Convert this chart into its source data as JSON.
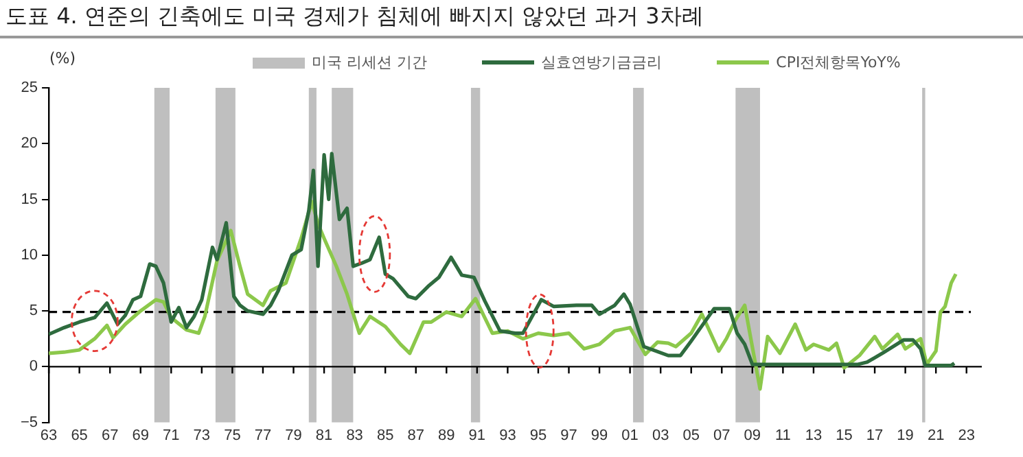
{
  "chart_data": {
    "type": "line",
    "title": "도표 4. 연준의 긴축에도 미국 경제가 침체에 빠지지 않았던 과거 3차례",
    "ylabel": "(%)",
    "xlim": [
      1963,
      2024
    ],
    "xticks": [
      {
        "value": 1963,
        "label": "63"
      },
      {
        "value": 1965,
        "label": "65"
      },
      {
        "value": 1967,
        "label": "67"
      },
      {
        "value": 1969,
        "label": "69"
      },
      {
        "value": 1971,
        "label": "71"
      },
      {
        "value": 1973,
        "label": "73"
      },
      {
        "value": 1975,
        "label": "75"
      },
      {
        "value": 1977,
        "label": "77"
      },
      {
        "value": 1979,
        "label": "79"
      },
      {
        "value": 1981,
        "label": "81"
      },
      {
        "value": 1983,
        "label": "83"
      },
      {
        "value": 1985,
        "label": "85"
      },
      {
        "value": 1987,
        "label": "87"
      },
      {
        "value": 1989,
        "label": "89"
      },
      {
        "value": 1991,
        "label": "91"
      },
      {
        "value": 1993,
        "label": "93"
      },
      {
        "value": 1995,
        "label": "95"
      },
      {
        "value": 1997,
        "label": "97"
      },
      {
        "value": 1999,
        "label": "99"
      },
      {
        "value": 2001,
        "label": "01"
      },
      {
        "value": 2003,
        "label": "03"
      },
      {
        "value": 2005,
        "label": "05"
      },
      {
        "value": 2007,
        "label": "07"
      },
      {
        "value": 2009,
        "label": "09"
      },
      {
        "value": 2011,
        "label": "11"
      },
      {
        "value": 2013,
        "label": "13"
      },
      {
        "value": 2015,
        "label": "15"
      },
      {
        "value": 2017,
        "label": "17"
      },
      {
        "value": 2019,
        "label": "19"
      },
      {
        "value": 2021,
        "label": "21"
      },
      {
        "value": 2023,
        "label": "23"
      }
    ],
    "ylim": [
      -5,
      25
    ],
    "yticks": [
      -5,
      0,
      5,
      10,
      15,
      20,
      25
    ],
    "grid": false,
    "legend": "top",
    "marker": "none",
    "line_style": "solid",
    "series": [
      {
        "name": "실효연방기금금리",
        "color": "#2e6b3e",
        "x": [
          1963,
          1964,
          1965,
          1966,
          1966.8,
          1967.5,
          1968,
          1968.5,
          1969,
          1969.6,
          1970,
          1970.5,
          1971,
          1971.5,
          1972,
          1972.5,
          1973,
          1973.7,
          1974,
          1974.6,
          1975.1,
          1975.5,
          1976,
          1977,
          1977.5,
          1978,
          1978.9,
          1979.5,
          1980,
          1980.3,
          1980.6,
          1981,
          1981.3,
          1981.5,
          1982,
          1982.5,
          1982.9,
          1983.5,
          1984,
          1984.6,
          1985,
          1985.5,
          1986.5,
          1987,
          1987.8,
          1988.5,
          1989.3,
          1990,
          1990.8,
          1991.5,
          1992.5,
          1993.5,
          1994,
          1995.2,
          1996,
          1997.5,
          1998.5,
          1999,
          2000,
          2000.6,
          2001,
          2001.9,
          2003.5,
          2004.3,
          2005,
          2006.5,
          2007.5,
          2008,
          2008.5,
          2009,
          2015.9,
          2016.5,
          2017.5,
          2018.9,
          2019.5,
          2020,
          2020.3,
          2022,
          2022.2
        ],
        "values": [
          2.9,
          3.5,
          4,
          4.4,
          5.7,
          3.8,
          4.6,
          6,
          6.3,
          9.2,
          9,
          7.5,
          4,
          5.3,
          3.5,
          4.5,
          6,
          10.7,
          9.6,
          12.9,
          6.3,
          5.5,
          5,
          4.7,
          5.5,
          6.8,
          10,
          10.5,
          14,
          17.6,
          9,
          19,
          15,
          19.1,
          13.2,
          14.2,
          9,
          9.3,
          9.6,
          11.6,
          8.3,
          7.9,
          6.3,
          6.1,
          7.2,
          8,
          9.8,
          8.2,
          8,
          5.9,
          3.2,
          3,
          3,
          6,
          5.4,
          5.5,
          5.5,
          4.7,
          5.5,
          6.5,
          5.6,
          1.8,
          1,
          1,
          2.3,
          5.2,
          5.2,
          3,
          2,
          0.2,
          0.2,
          0.4,
          1.2,
          2.4,
          2.4,
          1.6,
          0.1,
          0.1,
          0.3
        ]
      },
      {
        "name": "CPI전체항목YoY%",
        "color": "#8cc84b",
        "x": [
          1963,
          1964,
          1965,
          1966,
          1966.8,
          1967.2,
          1968,
          1969,
          1970,
          1970.5,
          1971,
          1972,
          1972.8,
          1973.2,
          1974,
          1974.9,
          1975.5,
          1976,
          1977,
          1977.5,
          1978.5,
          1979.5,
          1980.2,
          1980.6,
          1981,
          1981.8,
          1982.5,
          1983.3,
          1984,
          1985,
          1986,
          1986.6,
          1987.5,
          1988,
          1989,
          1990,
          1990.9,
          1991.5,
          1992,
          1993,
          1994,
          1995,
          1996,
          1997,
          1998,
          1999,
          2000,
          2001,
          2002,
          2002.8,
          2003.5,
          2004,
          2005,
          2005.7,
          2006.8,
          2007.3,
          2007.9,
          2008.5,
          2009.5,
          2010,
          2010.8,
          2011.8,
          2012.5,
          2013,
          2014,
          2014.5,
          2015,
          2016,
          2017,
          2017.5,
          2018.5,
          2019,
          2020,
          2020.4,
          2021,
          2021.3,
          2021.6,
          2022,
          2022.3
        ],
        "values": [
          1.2,
          1.3,
          1.5,
          2.5,
          3.7,
          2.6,
          3.8,
          5,
          6,
          5.8,
          4.4,
          3.3,
          3,
          4.5,
          9.5,
          12.2,
          9,
          6.5,
          5.5,
          6.8,
          7.5,
          11.5,
          14.8,
          12.8,
          11.5,
          9,
          6.5,
          3,
          4.5,
          3.6,
          2,
          1.2,
          4,
          4,
          4.9,
          4.5,
          6.1,
          4.4,
          3,
          3.2,
          2.5,
          3,
          2.8,
          3,
          1.6,
          2,
          3.2,
          3.5,
          1.1,
          2.2,
          2.1,
          1.8,
          3,
          4.7,
          1.4,
          2.5,
          4.2,
          5.5,
          -2,
          2.7,
          1.2,
          3.8,
          1.5,
          2,
          1.5,
          2.1,
          -0.1,
          1,
          2.7,
          1.6,
          2.9,
          1.6,
          2.5,
          0.2,
          1.4,
          4.9,
          5.4,
          7.5,
          8.3
        ]
      }
    ],
    "bands": [
      {
        "axis": "x",
        "from": 1969.9,
        "to": 1970.9,
        "label": "미국 리세션 기간",
        "color": "#bfbfbf"
      },
      {
        "axis": "x",
        "from": 1973.9,
        "to": 1975.2,
        "color": "#bfbfbf"
      },
      {
        "axis": "x",
        "from": 1980,
        "to": 1980.5,
        "color": "#bfbfbf"
      },
      {
        "axis": "x",
        "from": 1981.5,
        "to": 1982.9,
        "color": "#bfbfbf"
      },
      {
        "axis": "x",
        "from": 1990.6,
        "to": 1991.2,
        "color": "#bfbfbf"
      },
      {
        "axis": "x",
        "from": 2001.2,
        "to": 2001.9,
        "color": "#bfbfbf"
      },
      {
        "axis": "x",
        "from": 2007.9,
        "to": 2009.5,
        "color": "#bfbfbf"
      },
      {
        "axis": "x",
        "from": 2020.1,
        "to": 2020.3,
        "color": "#bfbfbf"
      }
    ],
    "ref_lines": [
      {
        "axis": "y",
        "value": 4.9,
        "color": "#000000",
        "line_style": "dashed"
      }
    ]
  }
}
